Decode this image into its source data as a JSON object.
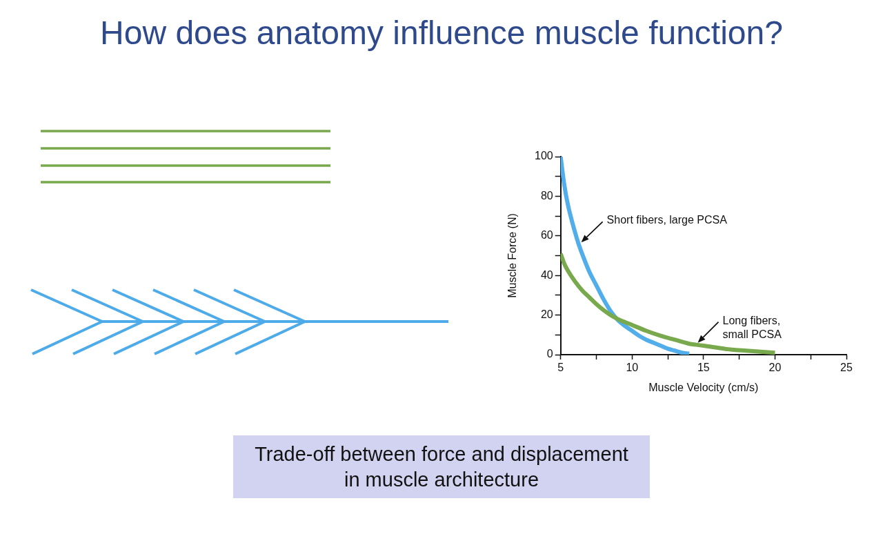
{
  "chart_data": {
    "type": "line",
    "title": "How does anatomy influence muscle function?",
    "xlabel": "Muscle Velocity (cm/s)",
    "ylabel": "Muscle Force (N)",
    "xlim": [
      5,
      25
    ],
    "xticks": [
      5,
      {
        "value": 7.5,
        "label": null
      },
      10,
      {
        "value": 12.5,
        "label": null
      },
      15,
      {
        "value": 17.5,
        "label": null
      },
      20,
      {
        "value": 22.5,
        "label": null
      },
      25
    ],
    "ylim": [
      0,
      100
    ],
    "yticks": [
      0,
      {
        "value": 10,
        "label": null
      },
      20,
      {
        "value": 30,
        "label": null
      },
      40,
      {
        "value": 50,
        "label": null
      },
      60,
      {
        "value": 70,
        "label": null
      },
      80,
      {
        "value": 90,
        "label": null
      },
      100
    ],
    "series": [
      {
        "name": "Short fibers, large PCSA",
        "color": "#52aeea",
        "x": [
          5,
          5.25,
          5.5,
          6,
          6.25,
          6.5,
          7,
          7.5,
          8,
          8.5,
          9,
          9.5,
          10,
          10.5,
          11,
          11.5,
          12,
          12.5,
          13,
          13.5,
          14
        ],
        "values": [
          100,
          86,
          76,
          62,
          56,
          51,
          42,
          35,
          28,
          22,
          17.5,
          14.5,
          12,
          9.5,
          7.5,
          6,
          4.5,
          3,
          2,
          1,
          0.5
        ]
      },
      {
        "name": "Long fibers, small PCSA",
        "color": "#78a94c",
        "x": [
          5,
          5.25,
          5.5,
          6,
          6.5,
          7,
          7.5,
          8,
          8.5,
          9,
          10,
          11,
          12,
          13,
          14,
          14.5,
          15,
          16,
          17,
          18,
          19,
          20
        ],
        "values": [
          51,
          46,
          42.5,
          37,
          32.5,
          29,
          25.5,
          22.5,
          20,
          18,
          15,
          12,
          9.5,
          7.5,
          5.5,
          5,
          4.5,
          3.5,
          2.5,
          2,
          1.5,
          1
        ]
      }
    ],
    "marker": "none",
    "line_style": "solid",
    "annotations": [
      "Trade-off between force and displacement in muscle architecture"
    ]
  }
}
